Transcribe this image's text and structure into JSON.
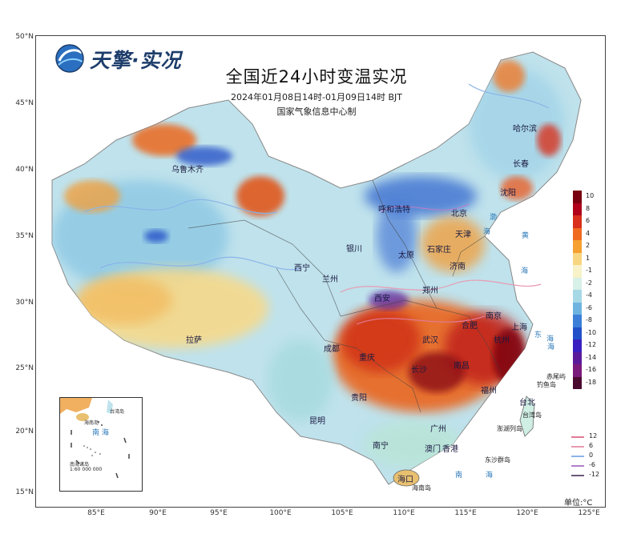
{
  "brand": "天擎·实况",
  "title": "全国近24小时变温实况",
  "period": "2024年01月08日14时-01月09日14时 BJT",
  "issuer": "国家气象信息中心制",
  "axes": {
    "lat_labels": [
      "50°N",
      "45°N",
      "40°N",
      "35°N",
      "30°N",
      "25°N",
      "20°N",
      "15°N"
    ],
    "lon_labels": [
      "85°E",
      "90°E",
      "95°E",
      "100°E",
      "105°E",
      "110°E",
      "115°E",
      "120°E",
      "125°E"
    ]
  },
  "cities": [
    {
      "name": "哈尔滨"
    },
    {
      "name": "长春"
    },
    {
      "name": "沈阳"
    },
    {
      "name": "乌鲁木齐"
    },
    {
      "name": "呼和浩特"
    },
    {
      "name": "北京"
    },
    {
      "name": "天津"
    },
    {
      "name": "石家庄"
    },
    {
      "name": "太原"
    },
    {
      "name": "银川"
    },
    {
      "name": "济南"
    },
    {
      "name": "西宁"
    },
    {
      "name": "兰州"
    },
    {
      "name": "郑州"
    },
    {
      "name": "西安"
    },
    {
      "name": "合肥"
    },
    {
      "name": "南京"
    },
    {
      "name": "上海"
    },
    {
      "name": "拉萨"
    },
    {
      "name": "成都"
    },
    {
      "name": "武汉"
    },
    {
      "name": "杭州"
    },
    {
      "name": "重庆"
    },
    {
      "name": "长沙"
    },
    {
      "name": "南昌"
    },
    {
      "name": "福州"
    },
    {
      "name": "贵阳"
    },
    {
      "name": "台北"
    },
    {
      "name": "昆明"
    },
    {
      "name": "广州"
    },
    {
      "name": "南宁"
    },
    {
      "name": "澳门"
    },
    {
      "name": "香港"
    },
    {
      "name": "海口"
    }
  ],
  "seas": [
    "渤",
    "海",
    "黄",
    "海",
    "东",
    "海",
    "南",
    "海",
    "海"
  ],
  "islands": [
    "赤尾屿",
    "钓鱼岛",
    "台湾岛",
    "澎湖列岛",
    "东沙群岛",
    "海南岛"
  ],
  "inset": {
    "title": "南海诸岛",
    "scale": "1:60 000 000",
    "sea": "南 海",
    "hainan": "海南岛",
    "taiwan": "台湾岛"
  },
  "legend": {
    "values": [
      "10",
      "8",
      "6",
      "4",
      "2",
      "1",
      "-1",
      "-2",
      "-4",
      "-6",
      "-8",
      "-10",
      "-12",
      "-14",
      "-16",
      "-18"
    ],
    "colors": [
      "#7a0010",
      "#b0001a",
      "#d8301c",
      "#f06a20",
      "#f5a030",
      "#f8d580",
      "#f7f2c8",
      "#d7f0e8",
      "#a6d8e6",
      "#6fb4e0",
      "#3d7fd8",
      "#2250c8",
      "#3a1fc0",
      "#5a1a9a",
      "#7a1a7a",
      "#4a0a30"
    ],
    "isolines": [
      {
        "value": "12",
        "color": "#e07a96"
      },
      {
        "value": "6",
        "color": "#e89ab0"
      },
      {
        "value": "0",
        "color": "#8ab4e8"
      },
      {
        "value": "-6",
        "color": "#b080c8"
      },
      {
        "value": "-12",
        "color": "#6a5a7a"
      }
    ],
    "unit": "单位:°C"
  }
}
